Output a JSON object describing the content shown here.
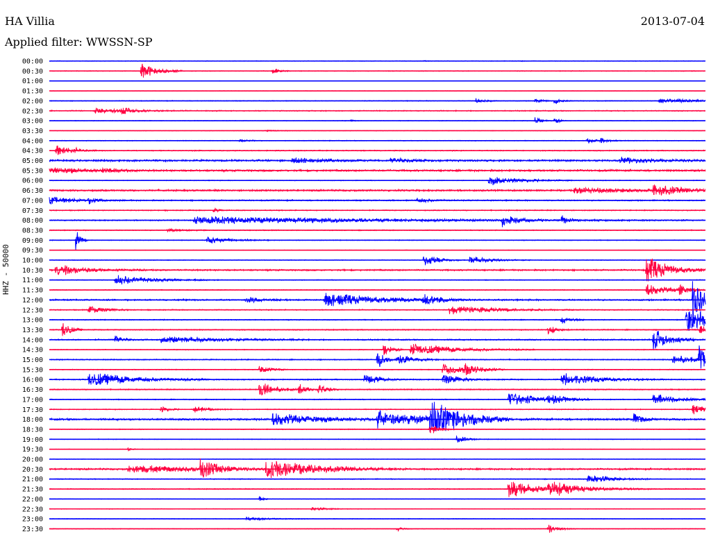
{
  "header": {
    "station": "HA Villia",
    "date": "2013-07-04",
    "filter": "Applied filter: WWSSN-SP"
  },
  "colors": {
    "blue": "#0000ff",
    "red": "#ff0040"
  },
  "chart_data": {
    "type": "line",
    "title": "HA Villia",
    "ylabel": "HHZ - 50000",
    "rows": [
      {
        "time": "00:00",
        "color": "blue",
        "noise": 0.4,
        "events": [
          [
            0.57,
            1,
            5
          ],
          [
            0.72,
            1,
            2
          ]
        ]
      },
      {
        "time": "00:30",
        "color": "red",
        "noise": 0.6,
        "events": [
          [
            0.14,
            14,
            20
          ],
          [
            0.34,
            6,
            8
          ]
        ]
      },
      {
        "time": "01:00",
        "color": "blue",
        "noise": 0.3,
        "events": []
      },
      {
        "time": "01:30",
        "color": "red",
        "noise": 0.3,
        "events": []
      },
      {
        "time": "02:00",
        "color": "blue",
        "noise": 0.6,
        "events": [
          [
            0.65,
            4,
            12
          ],
          [
            0.74,
            5,
            8
          ],
          [
            0.77,
            7,
            8
          ],
          [
            0.93,
            4,
            40
          ]
        ]
      },
      {
        "time": "02:30",
        "color": "red",
        "noise": 0.8,
        "events": [
          [
            0.07,
            4,
            50
          ],
          [
            0.11,
            6,
            12
          ]
        ]
      },
      {
        "time": "03:00",
        "color": "blue",
        "noise": 0.5,
        "events": [
          [
            0.74,
            7,
            8
          ],
          [
            0.77,
            6,
            6
          ],
          [
            0.46,
            2,
            4
          ]
        ]
      },
      {
        "time": "03:30",
        "color": "red",
        "noise": 0.4,
        "events": [
          [
            0.33,
            1,
            20
          ]
        ]
      },
      {
        "time": "04:00",
        "color": "blue",
        "noise": 0.6,
        "events": [
          [
            0.29,
            2,
            12
          ],
          [
            0.82,
            6,
            8
          ],
          [
            0.84,
            5,
            10
          ]
        ]
      },
      {
        "time": "04:30",
        "color": "red",
        "noise": 0.8,
        "events": [
          [
            0.01,
            10,
            20
          ],
          [
            0.04,
            4,
            4
          ]
        ]
      },
      {
        "time": "05:00",
        "color": "blue",
        "noise": 1.5,
        "events": [
          [
            0.37,
            5,
            40
          ],
          [
            0.52,
            4,
            30
          ],
          [
            0.87,
            5,
            40
          ]
        ]
      },
      {
        "time": "05:30",
        "color": "red",
        "noise": 1.5,
        "events": [
          [
            0.0,
            6,
            40
          ],
          [
            0.08,
            3,
            20
          ]
        ]
      },
      {
        "time": "06:00",
        "color": "blue",
        "noise": 0.6,
        "events": [
          [
            0.67,
            8,
            40
          ]
        ]
      },
      {
        "time": "06:30",
        "color": "red",
        "noise": 1.4,
        "events": [
          [
            0.8,
            5,
            70
          ],
          [
            0.92,
            9,
            40
          ]
        ]
      },
      {
        "time": "07:00",
        "color": "blue",
        "noise": 1.0,
        "events": [
          [
            0.0,
            6,
            40
          ],
          [
            0.06,
            5,
            8
          ],
          [
            0.56,
            4,
            20
          ]
        ]
      },
      {
        "time": "07:30",
        "color": "red",
        "noise": 0.8,
        "events": [
          [
            0.25,
            4,
            6
          ]
        ]
      },
      {
        "time": "08:00",
        "color": "blue",
        "noise": 0.9,
        "events": [
          [
            0.22,
            6,
            240
          ],
          [
            0.69,
            9,
            20
          ],
          [
            0.78,
            9,
            10
          ]
        ]
      },
      {
        "time": "08:30",
        "color": "red",
        "noise": 0.7,
        "events": [
          [
            0.18,
            3,
            20
          ]
        ]
      },
      {
        "time": "09:00",
        "color": "blue",
        "noise": 0.6,
        "events": [
          [
            0.04,
            18,
            6
          ],
          [
            0.24,
            6,
            30
          ]
        ]
      },
      {
        "time": "09:30",
        "color": "red",
        "noise": 0.4,
        "events": []
      },
      {
        "time": "10:00",
        "color": "blue",
        "noise": 0.5,
        "events": [
          [
            0.57,
            10,
            20
          ],
          [
            0.64,
            6,
            30
          ]
        ]
      },
      {
        "time": "10:30",
        "color": "red",
        "noise": 1.2,
        "events": [
          [
            0.01,
            10,
            8
          ],
          [
            0.02,
            6,
            40
          ],
          [
            0.91,
            22,
            30
          ]
        ]
      },
      {
        "time": "11:00",
        "color": "blue",
        "noise": 0.6,
        "events": [
          [
            0.1,
            8,
            50
          ]
        ]
      },
      {
        "time": "11:30",
        "color": "red",
        "noise": 0.6,
        "events": [
          [
            0.91,
            10,
            30
          ],
          [
            0.96,
            10,
            10
          ]
        ]
      },
      {
        "time": "12:00",
        "color": "blue",
        "noise": 1.2,
        "events": [
          [
            0.3,
            6,
            20
          ],
          [
            0.42,
            12,
            70
          ],
          [
            0.57,
            8,
            20
          ],
          [
            0.98,
            58,
            10
          ]
        ]
      },
      {
        "time": "12:30",
        "color": "red",
        "noise": 0.8,
        "events": [
          [
            0.06,
            8,
            20
          ],
          [
            0.61,
            7,
            60
          ]
        ]
      },
      {
        "time": "13:00",
        "color": "blue",
        "noise": 0.7,
        "events": [
          [
            0.78,
            8,
            12
          ],
          [
            0.97,
            24,
            40
          ]
        ]
      },
      {
        "time": "13:30",
        "color": "red",
        "noise": 0.8,
        "events": [
          [
            0.02,
            16,
            10
          ],
          [
            0.76,
            8,
            10
          ],
          [
            0.99,
            8,
            20
          ]
        ]
      },
      {
        "time": "14:00",
        "color": "blue",
        "noise": 1.0,
        "events": [
          [
            0.1,
            8,
            10
          ],
          [
            0.17,
            6,
            70
          ],
          [
            0.92,
            20,
            20
          ]
        ]
      },
      {
        "time": "14:30",
        "color": "red",
        "noise": 0.6,
        "events": [
          [
            0.51,
            12,
            10
          ],
          [
            0.55,
            10,
            60
          ]
        ]
      },
      {
        "time": "15:00",
        "color": "blue",
        "noise": 0.8,
        "events": [
          [
            0.5,
            18,
            10
          ],
          [
            0.53,
            10,
            20
          ],
          [
            0.95,
            8,
            30
          ],
          [
            0.99,
            30,
            8
          ]
        ]
      },
      {
        "time": "15:30",
        "color": "red",
        "noise": 0.6,
        "events": [
          [
            0.32,
            8,
            14
          ],
          [
            0.6,
            10,
            30
          ],
          [
            0.63,
            10,
            20
          ]
        ]
      },
      {
        "time": "16:00",
        "color": "blue",
        "noise": 0.9,
        "events": [
          [
            0.06,
            12,
            60
          ],
          [
            0.48,
            8,
            20
          ],
          [
            0.6,
            10,
            20
          ],
          [
            0.78,
            10,
            50
          ]
        ]
      },
      {
        "time": "16:30",
        "color": "red",
        "noise": 0.8,
        "events": [
          [
            0.32,
            14,
            20
          ],
          [
            0.38,
            10,
            10
          ],
          [
            0.41,
            10,
            10
          ]
        ]
      },
      {
        "time": "17:00",
        "color": "blue",
        "noise": 0.7,
        "events": [
          [
            0.7,
            12,
            40
          ],
          [
            0.76,
            8,
            20
          ],
          [
            0.92,
            10,
            30
          ]
        ]
      },
      {
        "time": "17:30",
        "color": "red",
        "noise": 0.7,
        "events": [
          [
            0.17,
            6,
            10
          ],
          [
            0.22,
            5,
            20
          ],
          [
            0.98,
            8,
            20
          ]
        ]
      },
      {
        "time": "18:00",
        "color": "blue",
        "noise": 1.5,
        "events": [
          [
            0.34,
            10,
            60
          ],
          [
            0.5,
            14,
            60
          ],
          [
            0.58,
            32,
            40
          ],
          [
            0.89,
            12,
            10
          ]
        ]
      },
      {
        "time": "18:30",
        "color": "red",
        "noise": 0.6,
        "events": [
          [
            0.58,
            10,
            12
          ]
        ]
      },
      {
        "time": "19:00",
        "color": "blue",
        "noise": 0.5,
        "events": [
          [
            0.62,
            8,
            12
          ]
        ]
      },
      {
        "time": "19:30",
        "color": "red",
        "noise": 0.4,
        "events": [
          [
            0.12,
            3,
            6
          ]
        ]
      },
      {
        "time": "20:00",
        "color": "blue",
        "noise": 0.4,
        "events": []
      },
      {
        "time": "20:30",
        "color": "red",
        "noise": 1.3,
        "events": [
          [
            0.12,
            6,
            110
          ],
          [
            0.23,
            18,
            20
          ],
          [
            0.33,
            14,
            70
          ]
        ]
      },
      {
        "time": "21:00",
        "color": "blue",
        "noise": 0.7,
        "events": [
          [
            0.82,
            8,
            30
          ]
        ]
      },
      {
        "time": "21:30",
        "color": "red",
        "noise": 0.7,
        "events": [
          [
            0.7,
            14,
            40
          ],
          [
            0.76,
            10,
            50
          ]
        ]
      },
      {
        "time": "22:00",
        "color": "blue",
        "noise": 0.4,
        "events": [
          [
            0.32,
            4,
            6
          ]
        ]
      },
      {
        "time": "22:30",
        "color": "red",
        "noise": 0.5,
        "events": [
          [
            0.4,
            3,
            20
          ]
        ]
      },
      {
        "time": "23:00",
        "color": "blue",
        "noise": 0.5,
        "events": [
          [
            0.3,
            3,
            30
          ]
        ]
      },
      {
        "time": "23:30",
        "color": "red",
        "noise": 0.5,
        "events": [
          [
            0.53,
            4,
            6
          ],
          [
            0.76,
            7,
            14
          ]
        ]
      }
    ]
  }
}
